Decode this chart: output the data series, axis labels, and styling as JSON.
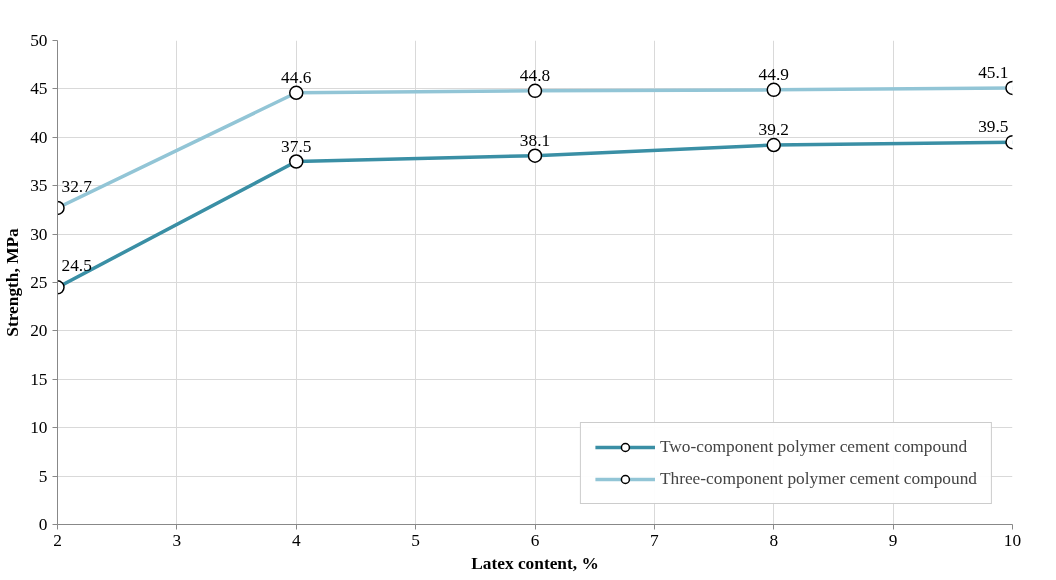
{
  "chart_data": {
    "type": "line",
    "xlabel": "Latex content, %",
    "ylabel": "Strength, MPa",
    "x": [
      2,
      4,
      6,
      8,
      10
    ],
    "series": [
      {
        "name": "Two-component polymer cement compound",
        "color": "#3a8fa5",
        "values": [
          24.5,
          37.5,
          38.1,
          39.2,
          39.5
        ]
      },
      {
        "name": "Three-component polymer cement compound",
        "color": "#92c5d6",
        "values": [
          32.7,
          44.6,
          44.8,
          44.9,
          45.1
        ]
      }
    ],
    "xlim": [
      2,
      10
    ],
    "xticks": [
      2,
      3,
      4,
      5,
      6,
      7,
      8,
      9,
      10
    ],
    "ylim": [
      0,
      50
    ],
    "yticks": [
      0,
      5,
      10,
      15,
      20,
      25,
      30,
      35,
      40,
      45,
      50
    ],
    "grid": true,
    "legend": "bottom right",
    "marker": "circle",
    "line_style": "solid",
    "data_labels": true
  }
}
